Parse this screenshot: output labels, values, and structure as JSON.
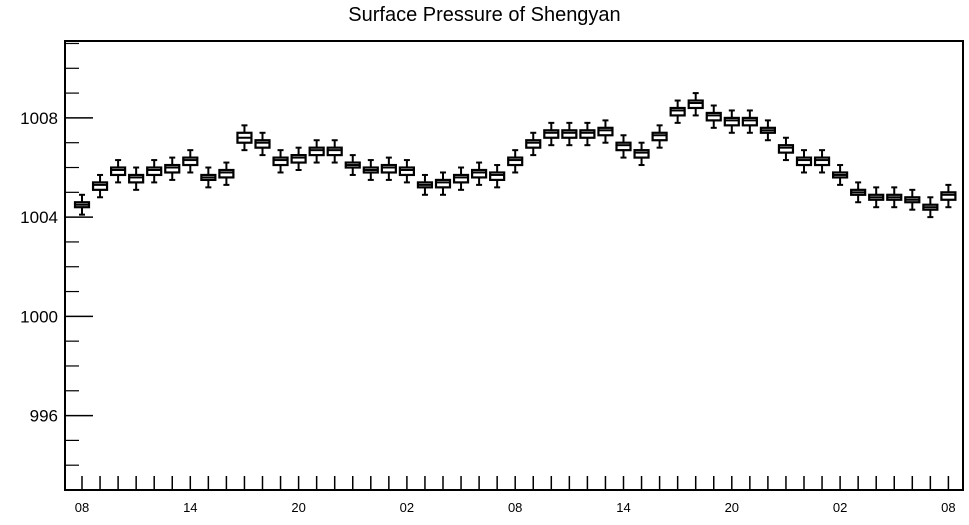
{
  "chart_data": {
    "type": "boxplot",
    "title": "Surface Pressure of Shengyan",
    "xlabel": "",
    "ylabel": "",
    "x_tick_labels": [
      "08",
      "14",
      "20",
      "02",
      "08",
      "14",
      "20",
      "02",
      "08"
    ],
    "y_ticks": [
      1008,
      1004,
      1000,
      996
    ],
    "ylim": [
      993,
      1011.1
    ],
    "grid": false,
    "legend": false,
    "series": [
      {
        "values": [
          1004.5,
          1005.3,
          1005.9,
          1005.6,
          1005.9,
          1006.0,
          1006.3,
          1005.6,
          1005.8,
          1007.2,
          1007.0,
          1006.3,
          1006.4,
          1006.7,
          1006.7,
          1006.1,
          1005.9,
          1006.0,
          1005.9,
          1005.3,
          1005.4,
          1005.6,
          1005.8,
          1005.7,
          1006.3,
          1007.0,
          1007.4,
          1007.4,
          1007.4,
          1007.5,
          1006.9,
          1006.6,
          1007.3,
          1008.3,
          1008.6,
          1008.1,
          1007.9,
          1007.9,
          1007.5,
          1006.8,
          1006.3,
          1006.3,
          1005.7,
          1005.0,
          1004.8,
          1004.8,
          1004.7,
          1004.4,
          1004.9
        ],
        "q1": [
          1004.4,
          1005.1,
          1005.7,
          1005.4,
          1005.7,
          1005.8,
          1006.1,
          1005.5,
          1005.6,
          1007.0,
          1006.8,
          1006.1,
          1006.2,
          1006.5,
          1006.5,
          1006.0,
          1005.8,
          1005.8,
          1005.7,
          1005.2,
          1005.2,
          1005.4,
          1005.6,
          1005.5,
          1006.1,
          1006.8,
          1007.2,
          1007.2,
          1007.2,
          1007.3,
          1006.7,
          1006.4,
          1007.1,
          1008.1,
          1008.4,
          1007.9,
          1007.7,
          1007.7,
          1007.4,
          1006.6,
          1006.1,
          1006.1,
          1005.6,
          1004.9,
          1004.7,
          1004.7,
          1004.6,
          1004.3,
          1004.7
        ],
        "q3": [
          1004.6,
          1005.4,
          1006.0,
          1005.7,
          1006.0,
          1006.1,
          1006.4,
          1005.7,
          1005.9,
          1007.4,
          1007.1,
          1006.4,
          1006.5,
          1006.8,
          1006.8,
          1006.2,
          1006.0,
          1006.1,
          1006.0,
          1005.4,
          1005.5,
          1005.7,
          1005.9,
          1005.8,
          1006.4,
          1007.1,
          1007.5,
          1007.5,
          1007.5,
          1007.6,
          1007.0,
          1006.7,
          1007.4,
          1008.4,
          1008.7,
          1008.2,
          1008.0,
          1008.0,
          1007.6,
          1006.9,
          1006.4,
          1006.4,
          1005.8,
          1005.1,
          1004.9,
          1004.9,
          1004.8,
          1004.5,
          1005.0
        ],
        "low": [
          1004.1,
          1004.8,
          1005.4,
          1005.1,
          1005.4,
          1005.5,
          1005.8,
          1005.2,
          1005.3,
          1006.7,
          1006.5,
          1005.8,
          1005.9,
          1006.2,
          1006.2,
          1005.7,
          1005.5,
          1005.5,
          1005.4,
          1004.9,
          1004.9,
          1005.1,
          1005.3,
          1005.2,
          1005.8,
          1006.5,
          1006.9,
          1006.9,
          1006.9,
          1007.0,
          1006.4,
          1006.1,
          1006.8,
          1007.8,
          1008.1,
          1007.6,
          1007.4,
          1007.4,
          1007.1,
          1006.3,
          1005.8,
          1005.8,
          1005.3,
          1004.6,
          1004.4,
          1004.4,
          1004.3,
          1004.0,
          1004.4
        ],
        "high": [
          1004.9,
          1005.7,
          1006.3,
          1006.0,
          1006.3,
          1006.4,
          1006.7,
          1006.0,
          1006.2,
          1007.7,
          1007.4,
          1006.7,
          1006.8,
          1007.1,
          1007.1,
          1006.5,
          1006.3,
          1006.4,
          1006.3,
          1005.7,
          1005.8,
          1006.0,
          1006.2,
          1006.1,
          1006.7,
          1007.4,
          1007.8,
          1007.8,
          1007.8,
          1007.9,
          1007.3,
          1007.0,
          1007.7,
          1008.7,
          1009.0,
          1008.5,
          1008.3,
          1008.3,
          1007.9,
          1007.2,
          1006.7,
          1006.7,
          1006.1,
          1005.4,
          1005.2,
          1005.2,
          1005.1,
          1004.8,
          1005.3
        ]
      }
    ]
  }
}
